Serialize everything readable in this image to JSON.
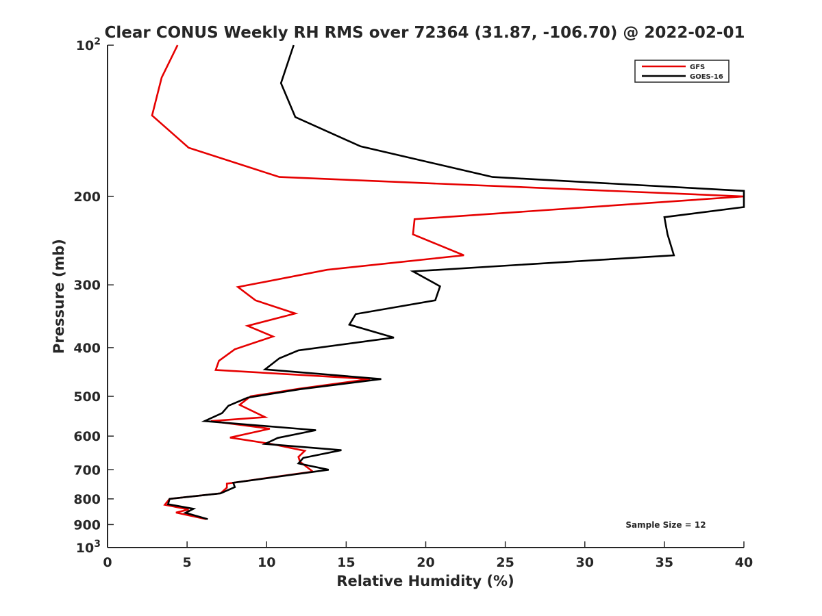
{
  "chart_data": {
    "type": "line",
    "title": "Clear CONUS Weekly RH RMS over 72364 (31.87, -106.70) @ 2022-02-01",
    "xlabel": "Relative Humidity (%)",
    "ylabel": "Pressure (mb)",
    "xlim": [
      0,
      40
    ],
    "ylim": [
      100,
      1000
    ],
    "y_scale": "log",
    "y_reversed": true,
    "grid": false,
    "legend_position": "top-right",
    "annotation": "Sample Size = 12",
    "x_ticks": [
      "0",
      "5",
      "10",
      "15",
      "20",
      "25",
      "30",
      "35",
      "40"
    ],
    "y_ticks": [
      {
        "value": 100,
        "label": "10",
        "sup": "2"
      },
      {
        "value": 200,
        "label": "200",
        "sup": ""
      },
      {
        "value": 300,
        "label": "300",
        "sup": ""
      },
      {
        "value": 400,
        "label": "400",
        "sup": ""
      },
      {
        "value": 500,
        "label": "500",
        "sup": ""
      },
      {
        "value": 600,
        "label": "600",
        "sup": ""
      },
      {
        "value": 700,
        "label": "700",
        "sup": ""
      },
      {
        "value": 800,
        "label": "800",
        "sup": ""
      },
      {
        "value": 900,
        "label": "900",
        "sup": ""
      },
      {
        "value": 1000,
        "label": "10",
        "sup": "3"
      }
    ],
    "series": [
      {
        "name": "GFS",
        "color": "#e60000",
        "points": [
          [
            4.4,
            100
          ],
          [
            3.4,
            116
          ],
          [
            2.8,
            138
          ],
          [
            5.1,
            160
          ],
          [
            10.8,
            183
          ],
          [
            40.0,
            200
          ],
          [
            19.3,
            222
          ],
          [
            19.2,
            238
          ],
          [
            22.4,
            262
          ],
          [
            13.8,
            280
          ],
          [
            8.2,
            303
          ],
          [
            9.3,
            322
          ],
          [
            11.8,
            342
          ],
          [
            8.8,
            362
          ],
          [
            10.4,
            380
          ],
          [
            8.0,
            403
          ],
          [
            7.0,
            425
          ],
          [
            6.8,
            443
          ],
          [
            16.5,
            462
          ],
          [
            12.0,
            483
          ],
          [
            9.0,
            500
          ],
          [
            8.3,
            520
          ],
          [
            9.9,
            550
          ],
          [
            6.5,
            560
          ],
          [
            10.2,
            580
          ],
          [
            7.7,
            604
          ],
          [
            10.3,
            622
          ],
          [
            12.4,
            642
          ],
          [
            12.0,
            660
          ],
          [
            12.1,
            675
          ],
          [
            12.9,
            706
          ],
          [
            7.5,
            746
          ],
          [
            7.5,
            760
          ],
          [
            7.1,
            780
          ],
          [
            3.9,
            800
          ],
          [
            3.6,
            822
          ],
          [
            5.1,
            840
          ],
          [
            4.3,
            852
          ],
          [
            6.2,
            878
          ]
        ]
      },
      {
        "name": "GOES-16",
        "color": "#000000",
        "points": [
          [
            11.7,
            100
          ],
          [
            10.9,
            119
          ],
          [
            11.8,
            139
          ],
          [
            15.9,
            159
          ],
          [
            24.2,
            183
          ],
          [
            40.0,
            195
          ],
          [
            40.0,
            210
          ],
          [
            35.0,
            220
          ],
          [
            35.2,
            238
          ],
          [
            35.6,
            262
          ],
          [
            19.2,
            282
          ],
          [
            20.9,
            302
          ],
          [
            20.6,
            322
          ],
          [
            15.6,
            343
          ],
          [
            15.2,
            360
          ],
          [
            18.0,
            382
          ],
          [
            12.0,
            405
          ],
          [
            10.8,
            420
          ],
          [
            9.9,
            442
          ],
          [
            17.2,
            462
          ],
          [
            12.1,
            484
          ],
          [
            8.8,
            503
          ],
          [
            7.6,
            522
          ],
          [
            7.2,
            540
          ],
          [
            6.1,
            560
          ],
          [
            13.1,
            584
          ],
          [
            10.7,
            605
          ],
          [
            9.9,
            622
          ],
          [
            14.7,
            640
          ],
          [
            12.3,
            663
          ],
          [
            12.0,
            680
          ],
          [
            13.9,
            700
          ],
          [
            7.9,
            743
          ],
          [
            8.0,
            758
          ],
          [
            7.1,
            780
          ],
          [
            3.9,
            800
          ],
          [
            3.8,
            820
          ],
          [
            5.4,
            837
          ],
          [
            4.9,
            853
          ],
          [
            6.3,
            878
          ]
        ]
      }
    ]
  }
}
